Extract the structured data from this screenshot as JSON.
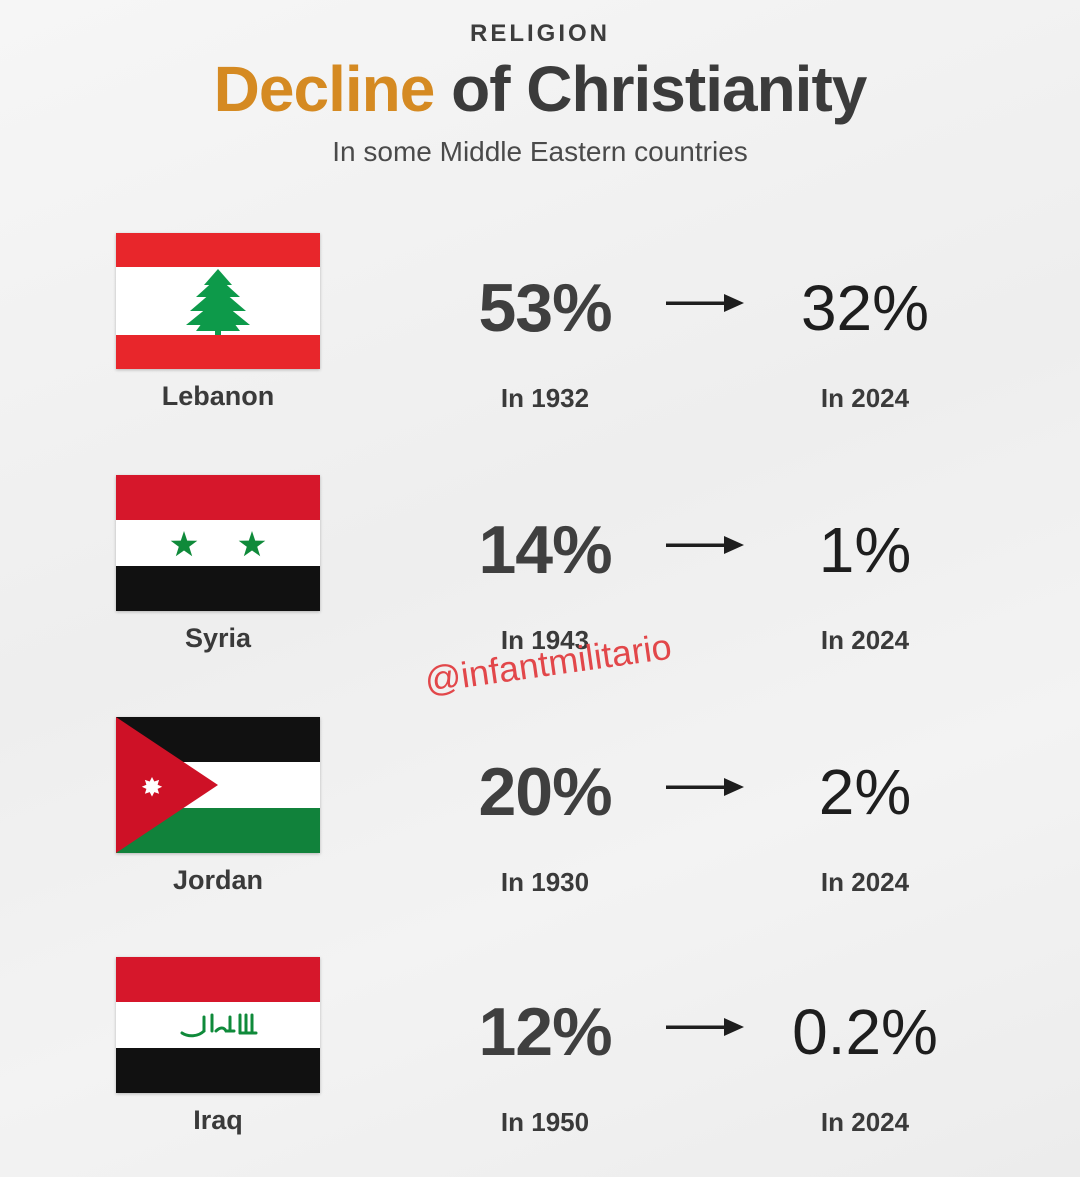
{
  "header": {
    "kicker": "RELIGION",
    "title_accent": "Decline",
    "title_rest": " of Christianity",
    "subtitle": "In some Middle Eastern countries"
  },
  "colors": {
    "accent": "#d58a22",
    "watermark": "#e2474a",
    "text_dark": "#3b3b3b"
  },
  "rows": [
    {
      "country": "Lebanon",
      "flag_icon": "lebanon-flag-icon",
      "old_pct": "53%",
      "old_year": "In 1932",
      "new_pct": "32%",
      "new_year": "In 2024"
    },
    {
      "country": "Syria",
      "flag_icon": "syria-flag-icon",
      "old_pct": "14%",
      "old_year": "In 1943",
      "new_pct": "1%",
      "new_year": "In 2024"
    },
    {
      "country": "Jordan",
      "flag_icon": "jordan-flag-icon",
      "old_pct": "20%",
      "old_year": "In 1930",
      "new_pct": "2%",
      "new_year": "In 2024"
    },
    {
      "country": "Iraq",
      "flag_icon": "iraq-flag-icon",
      "old_pct": "12%",
      "old_year": "In 1950",
      "new_pct": "0.2%",
      "new_year": "In 2024"
    }
  ],
  "watermark": "@infantmilitario"
}
